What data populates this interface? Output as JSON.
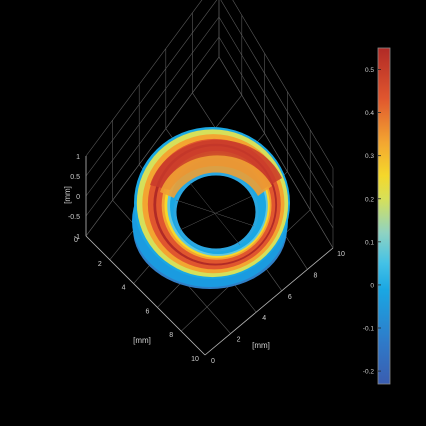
{
  "chart_data": {
    "type": "surface",
    "description_free": true,
    "xlabel": "[mm]",
    "ylabel": "[mm]",
    "zlabel": "[mm]",
    "x_ticks": [
      "0",
      "2",
      "4",
      "6",
      "8",
      "10"
    ],
    "y_ticks": [
      "0",
      "2",
      "4",
      "6",
      "8",
      "10"
    ],
    "z_ticks": [
      "1",
      "0.5",
      "0",
      "-0.5",
      "-1"
    ],
    "xlim": [
      0,
      10
    ],
    "ylim": [
      0,
      10
    ],
    "zlim": [
      -1,
      1
    ],
    "grid": true,
    "colormap": "jet",
    "colorbar": {
      "ticks": [
        "0.5",
        "0.4",
        "0.3",
        "0.2",
        "0.1",
        "0",
        "-0.1",
        "-0.2"
      ],
      "range": [
        -0.23,
        0.55
      ],
      "location": "right"
    },
    "surface": {
      "shape": "torus",
      "center": [
        5,
        5
      ],
      "inner_radius": 2.2,
      "outer_radius": 4.1,
      "value_range": [
        -0.2,
        0.5
      ]
    }
  },
  "colors": {
    "background": "#000000",
    "axes": "#b0b0b0",
    "grid": "#5a5a5a",
    "text": "#d0d0d0"
  }
}
